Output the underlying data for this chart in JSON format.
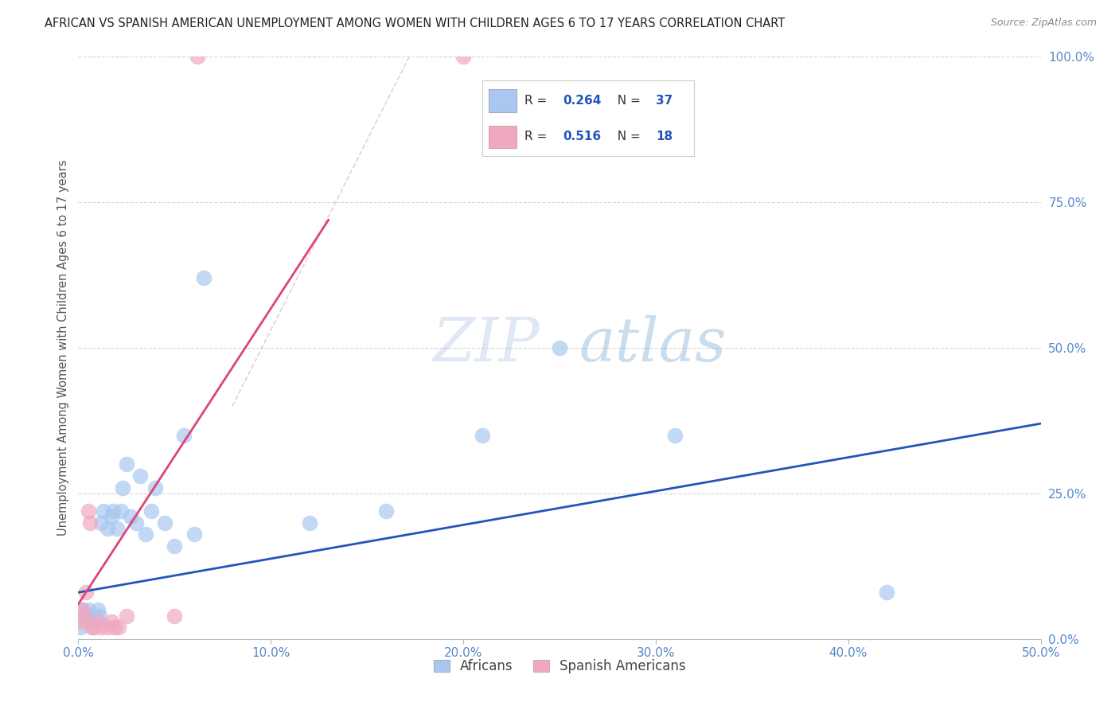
{
  "title": "AFRICAN VS SPANISH AMERICAN UNEMPLOYMENT AMONG WOMEN WITH CHILDREN AGES 6 TO 17 YEARS CORRELATION CHART",
  "source": "Source: ZipAtlas.com",
  "ylabel_label": "Unemployment Among Women with Children Ages 6 to 17 years",
  "watermark_zip": "ZIP",
  "watermark_atlas": "atlas",
  "africans_R": 0.264,
  "africans_N": 37,
  "spanish_R": 0.516,
  "spanish_N": 18,
  "africans_color": "#a8c8f0",
  "spanish_color": "#f0a8c0",
  "africans_line_color": "#2255bb",
  "spanish_line_color": "#dd4477",
  "africans_x": [
    0.001,
    0.002,
    0.003,
    0.004,
    0.005,
    0.006,
    0.007,
    0.008,
    0.009,
    0.01,
    0.011,
    0.012,
    0.013,
    0.015,
    0.017,
    0.018,
    0.02,
    0.022,
    0.023,
    0.025,
    0.027,
    0.03,
    0.032,
    0.035,
    0.038,
    0.04,
    0.045,
    0.05,
    0.055,
    0.06,
    0.065,
    0.12,
    0.16,
    0.21,
    0.25,
    0.31,
    0.42
  ],
  "africans_y": [
    0.02,
    0.05,
    0.04,
    0.03,
    0.05,
    0.04,
    0.03,
    0.04,
    0.03,
    0.05,
    0.04,
    0.2,
    0.22,
    0.19,
    0.21,
    0.22,
    0.19,
    0.22,
    0.26,
    0.3,
    0.21,
    0.2,
    0.28,
    0.18,
    0.22,
    0.26,
    0.2,
    0.16,
    0.35,
    0.18,
    0.62,
    0.2,
    0.22,
    0.35,
    0.5,
    0.35,
    0.08
  ],
  "spanish_x": [
    0.001,
    0.002,
    0.003,
    0.004,
    0.005,
    0.006,
    0.007,
    0.008,
    0.01,
    0.012,
    0.015,
    0.017,
    0.019,
    0.021,
    0.025,
    0.05,
    0.062,
    0.2
  ],
  "spanish_y": [
    0.03,
    0.05,
    0.04,
    0.08,
    0.22,
    0.2,
    0.02,
    0.02,
    0.03,
    0.02,
    0.02,
    0.03,
    0.02,
    0.02,
    0.04,
    0.04,
    1.0,
    1.0
  ],
  "xlim": [
    0,
    0.5
  ],
  "ylim": [
    0,
    1.0
  ],
  "xlabel_vals": [
    0,
    0.1,
    0.2,
    0.3,
    0.4,
    0.5
  ],
  "xlabel_labels": [
    "0.0%",
    "10.0%",
    "20.0%",
    "30.0%",
    "40.0%",
    "50.0%"
  ],
  "ylabel_vals": [
    0,
    0.25,
    0.5,
    0.75,
    1.0
  ],
  "ylabel_labels": [
    "0.0%",
    "25.0%",
    "50.0%",
    "75.0%",
    "100.0%"
  ],
  "background_color": "#ffffff",
  "grid_color": "#cccccc",
  "tick_color": "#5588cc",
  "title_color": "#222222",
  "source_color": "#888888",
  "label_color": "#555555",
  "legend_label_color": "#444444"
}
